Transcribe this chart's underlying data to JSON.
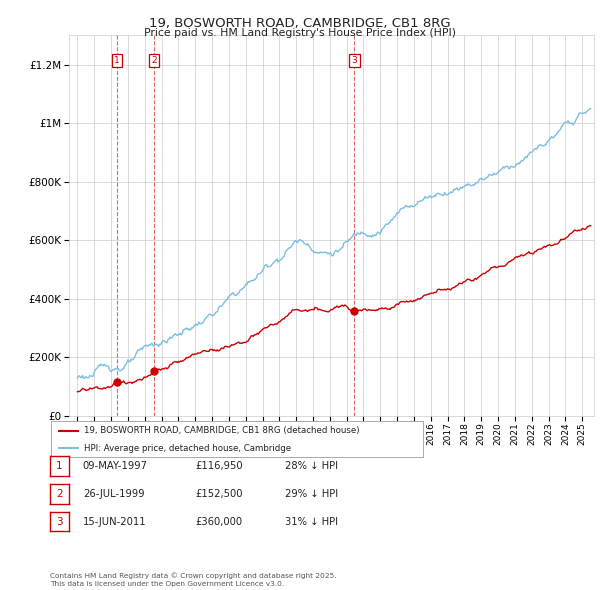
{
  "title": "19, BOSWORTH ROAD, CAMBRIDGE, CB1 8RG",
  "subtitle": "Price paid vs. HM Land Registry's House Price Index (HPI)",
  "ylim": [
    0,
    1300000
  ],
  "xlim_start": 1994.5,
  "xlim_end": 2025.7,
  "sale_dates": [
    1997.36,
    1999.57,
    2011.46
  ],
  "sale_prices": [
    116950,
    152500,
    360000
  ],
  "sale_labels": [
    "1",
    "2",
    "3"
  ],
  "sale_info": [
    {
      "label": "1",
      "date": "09-MAY-1997",
      "price": "£116,950",
      "pct": "28% ↓ HPI"
    },
    {
      "label": "2",
      "date": "26-JUL-1999",
      "price": "£152,500",
      "pct": "29% ↓ HPI"
    },
    {
      "label": "3",
      "date": "15-JUN-2011",
      "price": "£360,000",
      "pct": "31% ↓ HPI"
    }
  ],
  "legend_line1": "19, BOSWORTH ROAD, CAMBRIDGE, CB1 8RG (detached house)",
  "legend_line2": "HPI: Average price, detached house, Cambridge",
  "footer": "Contains HM Land Registry data © Crown copyright and database right 2025.\nThis data is licensed under the Open Government Licence v3.0.",
  "hpi_color": "#7bbfde",
  "sale_line_color": "#cc0000",
  "vline_color": "#cc0000",
  "background_color": "#ffffff",
  "grid_color": "#cccccc",
  "ytick_labels": [
    "£0",
    "£200K",
    "£400K",
    "£600K",
    "£800K",
    "£1M",
    "£1.2M"
  ],
  "ytick_values": [
    0,
    200000,
    400000,
    600000,
    800000,
    1000000,
    1200000
  ]
}
